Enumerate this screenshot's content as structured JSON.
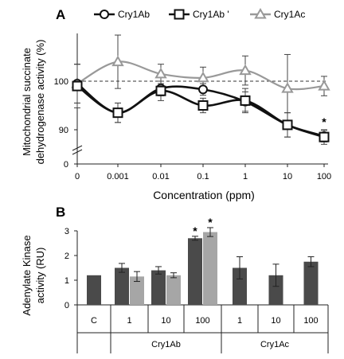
{
  "panels": {
    "a_label": "A",
    "b_label": "B"
  },
  "colors": {
    "dark": "#111111",
    "gray": "#999999",
    "bar_dark": "#4a4a4a",
    "bar_light": "#a6a6a6",
    "ref_line": "#333333"
  },
  "chart_data": [
    {
      "type": "line",
      "xlabel": "Concentration (ppm)",
      "ylabel": "Mitochondrial succinate dehydrogenase activity (%)",
      "ylabel_lines": [
        "Mitochondrial succinate",
        "dehydrogenase activity (%)"
      ],
      "x": [
        "0",
        "0.001",
        "0.01",
        "0.1",
        "1",
        "10",
        "100"
      ],
      "y_ticks": [
        "0",
        "90",
        "100"
      ],
      "y_break": true,
      "ylim": [
        86,
        110
      ],
      "reference_line": 100,
      "legend_position": "top",
      "series": [
        {
          "name": "Cry1Ab",
          "marker": "circle",
          "color": "#111111",
          "values": [
            99.5,
            93.5,
            98.5,
            98.3,
            95.8,
            91,
            88.7
          ],
          "errors": [
            4,
            2,
            1.5,
            1.2,
            2,
            2.5,
            1.2
          ]
        },
        {
          "name": "Cry1Ab '",
          "marker": "square",
          "color": "#111111",
          "values": [
            99,
            93.5,
            98,
            95,
            96,
            91,
            88.5
          ],
          "errors": [
            4.5,
            2,
            2,
            1.5,
            2.5,
            2.5,
            1.5
          ]
        },
        {
          "name": "Cry1Ac",
          "marker": "triangle",
          "color": "#999999",
          "values": [
            99.5,
            104,
            101.5,
            100.7,
            102.2,
            98.5,
            99
          ],
          "errors": [
            4,
            5.5,
            2,
            2.2,
            3,
            7,
            2
          ]
        }
      ],
      "annotations": [
        {
          "x": "100",
          "text": "*"
        }
      ]
    },
    {
      "type": "bar",
      "ylabel": "Adenylate Kinase activity (RU)",
      "ylabel_lines": [
        "Adenylate Kinase",
        "activity (RU)"
      ],
      "ylim": [
        0,
        3
      ],
      "y_ticks": [
        "0",
        "1",
        "2",
        "3"
      ],
      "groups": [
        {
          "label": "",
          "categories": [
            {
              "label": "C",
              "bars": [
                {
                  "value": 1.2,
                  "error": 0,
                  "shade": "dark"
                }
              ]
            }
          ]
        },
        {
          "label": "Cry1Ab",
          "categories": [
            {
              "label": "1",
              "bars": [
                {
                  "value": 1.5,
                  "error": 0.18,
                  "shade": "dark"
                },
                {
                  "value": 1.15,
                  "error": 0.2,
                  "shade": "light"
                }
              ]
            },
            {
              "label": "10",
              "bars": [
                {
                  "value": 1.4,
                  "error": 0.15,
                  "shade": "dark"
                },
                {
                  "value": 1.2,
                  "error": 0.1,
                  "shade": "light"
                }
              ]
            },
            {
              "label": "100",
              "bars": [
                {
                  "value": 2.7,
                  "error": 0.08,
                  "shade": "dark",
                  "mark": "*"
                },
                {
                  "value": 2.95,
                  "error": 0.18,
                  "shade": "light",
                  "mark": "*"
                }
              ]
            }
          ]
        },
        {
          "label": "Cry1Ac",
          "categories": [
            {
              "label": "1",
              "bars": [
                {
                  "value": 1.5,
                  "error": 0.45,
                  "shade": "dark"
                }
              ]
            },
            {
              "label": "10",
              "bars": [
                {
                  "value": 1.2,
                  "error": 0.45,
                  "shade": "dark"
                }
              ]
            },
            {
              "label": "100",
              "bars": [
                {
                  "value": 1.75,
                  "error": 0.2,
                  "shade": "dark"
                }
              ]
            }
          ]
        }
      ]
    }
  ]
}
